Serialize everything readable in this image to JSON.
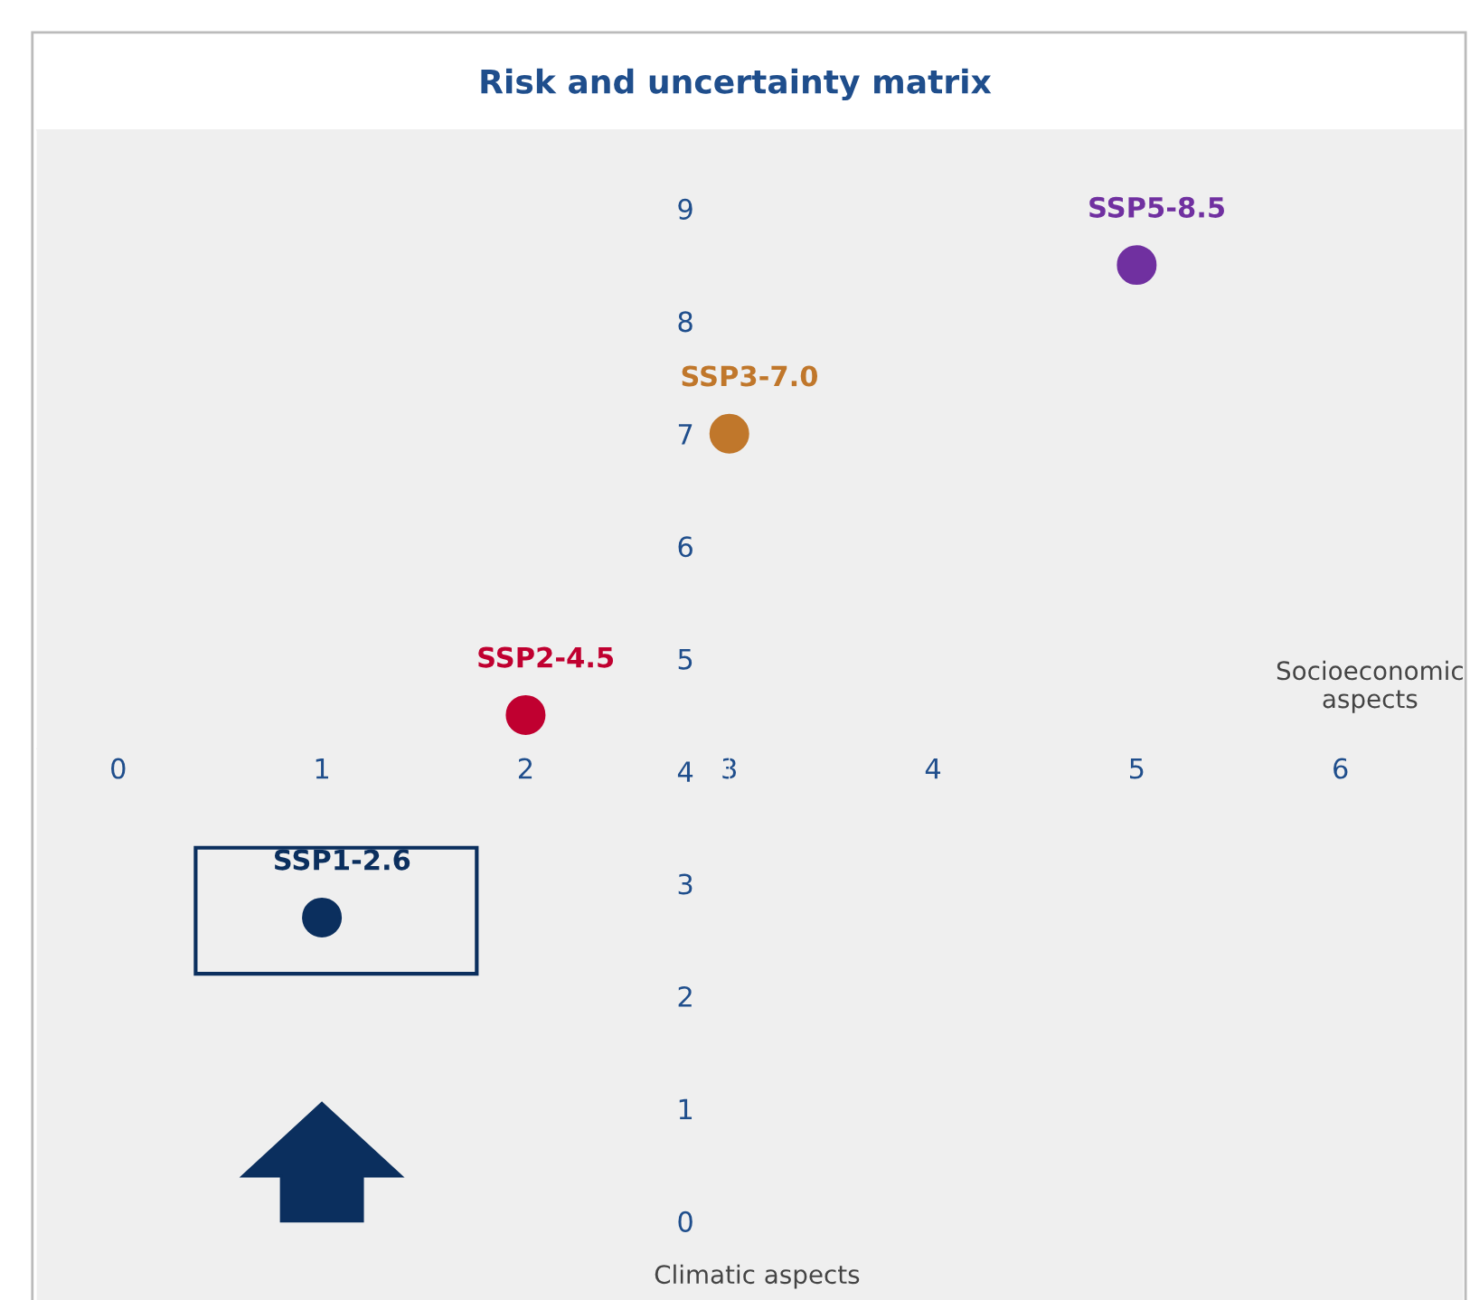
{
  "chart_data": {
    "type": "scatter",
    "title": "Risk and uncertainty matrix",
    "xlabel": "Socioeconomic aspects",
    "ylabel": "Climatic aspects",
    "xlim": [
      -0.4,
      6.6
    ],
    "ylim": [
      -0.7,
      9.7
    ],
    "xticks": [
      0,
      1,
      2,
      3,
      4,
      5,
      6
    ],
    "yticks": [
      0,
      1,
      2,
      3,
      4,
      5,
      6,
      7,
      8,
      9
    ],
    "grid": false,
    "legend": false,
    "marker": "circle",
    "series": [
      {
        "name": "SSP1-2.6",
        "color": "#0b2f5e",
        "x": [
          1
        ],
        "values": [
          2.7
        ]
      },
      {
        "name": "SSP2-4.5",
        "color": "#c00030",
        "x": [
          2
        ],
        "values": [
          4.5
        ]
      },
      {
        "name": "SSP3-7.0",
        "color": "#c0772b",
        "x": [
          3
        ],
        "values": [
          7.0
        ]
      },
      {
        "name": "SSP5-8.5",
        "color": "#7030a0",
        "x": [
          5
        ],
        "values": [
          8.5
        ]
      }
    ]
  }
}
